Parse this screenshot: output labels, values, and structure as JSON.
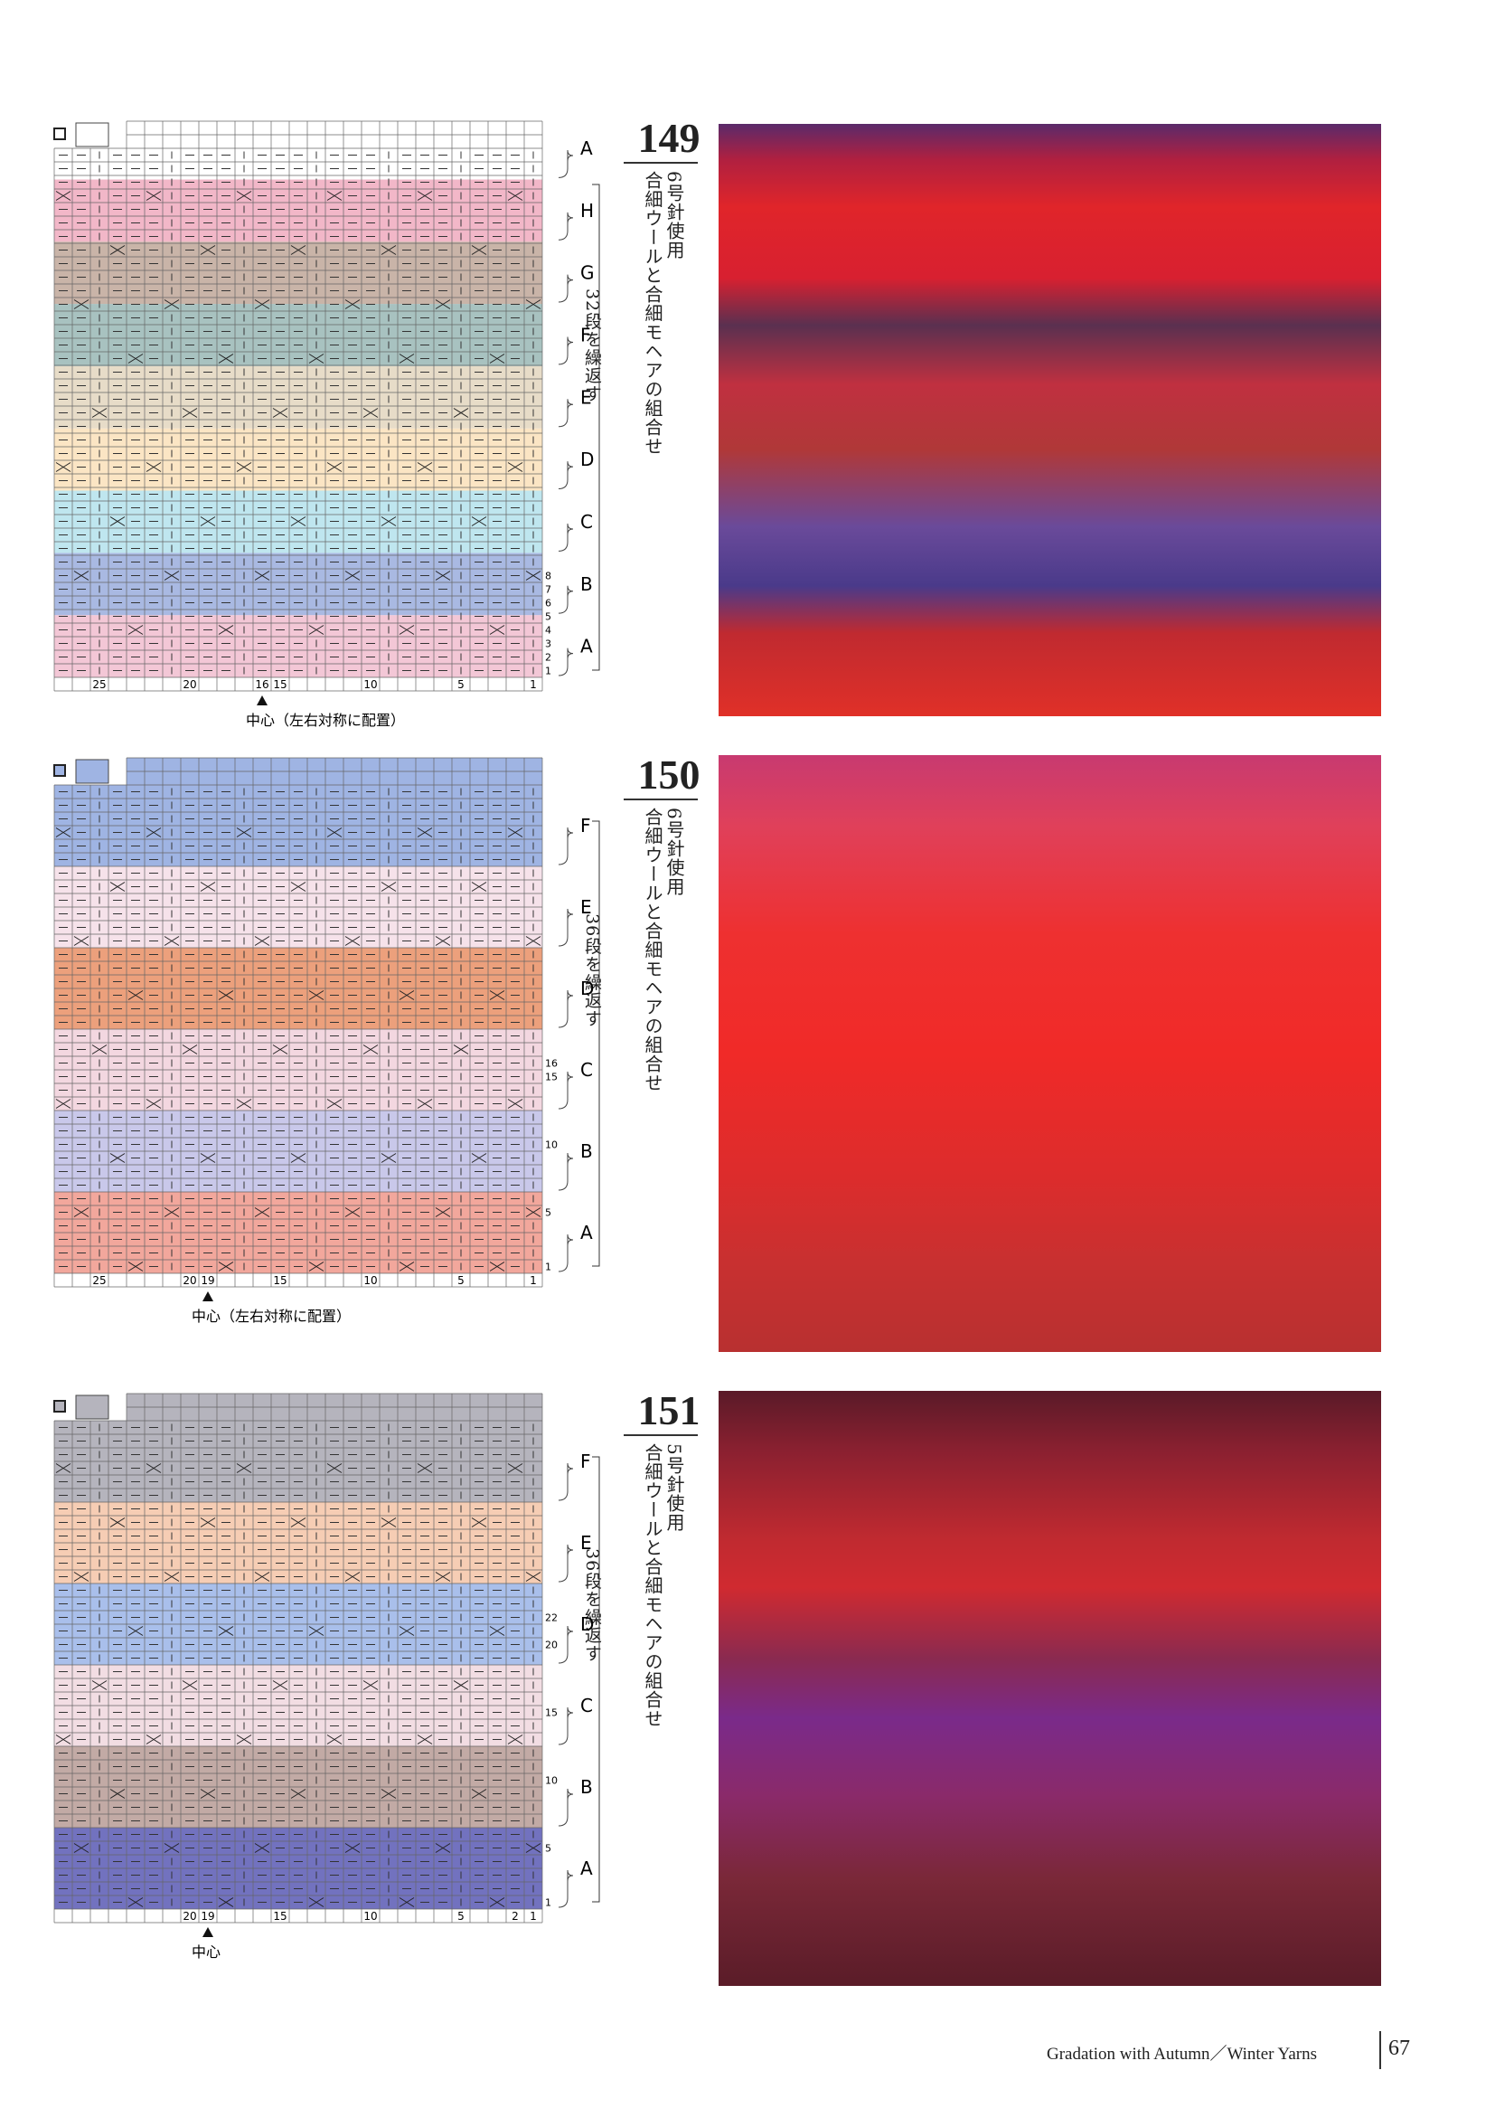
{
  "patterns": [
    {
      "number": "149",
      "needle": "6号針使用",
      "yarn": "合細ウールと合細モヘアの組合せ",
      "repeat": "32段を繰返す",
      "sections": [
        "A",
        "B",
        "C",
        "D",
        "E",
        "F",
        "G",
        "H",
        "A"
      ],
      "column_numbers": [
        "25",
        "20",
        "16",
        "15",
        "10",
        "5",
        "1"
      ],
      "row_numbers": [
        "1",
        "2",
        "3",
        "4",
        "5",
        "6",
        "7",
        "8"
      ],
      "center": "中心（左右対称に配置）"
    },
    {
      "number": "150",
      "needle": "6号針使用",
      "yarn": "合細ウールと合細モヘアの組合せ",
      "repeat": "36段を繰返す",
      "sections": [
        "A",
        "B",
        "C",
        "D",
        "E",
        "F"
      ],
      "column_numbers": [
        "25",
        "20",
        "19",
        "15",
        "10",
        "5",
        "1"
      ],
      "row_numbers": [
        "1",
        "5",
        "10",
        "15",
        "16"
      ],
      "center": "中心（左右対称に配置）"
    },
    {
      "number": "151",
      "needle": "5号針使用",
      "yarn": "合細ウールと合細モヘアの組合せ",
      "repeat": "36段を繰返す",
      "sections": [
        "A",
        "B",
        "C",
        "D",
        "E",
        "F"
      ],
      "column_numbers": [
        "20",
        "19",
        "15",
        "10",
        "5",
        "2",
        "1"
      ],
      "row_numbers": [
        "1",
        "5",
        "10",
        "15",
        "20",
        "22"
      ],
      "center": "中心"
    }
  ],
  "footer": {
    "title": "Gradation with Autumn／Winter Yarns",
    "page": "67"
  }
}
